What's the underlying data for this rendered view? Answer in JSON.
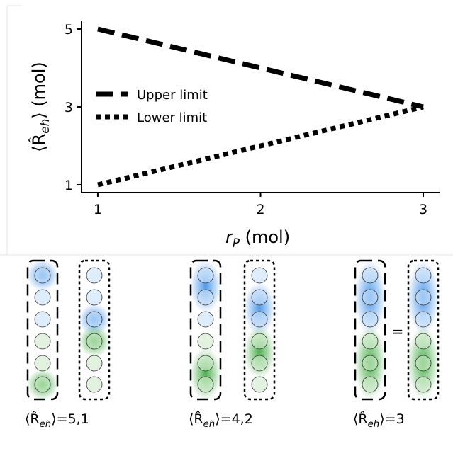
{
  "chart_data": {
    "type": "line",
    "x": [
      1,
      3
    ],
    "series": [
      {
        "name": "Upper limit",
        "color": "#000000",
        "style": "dashed",
        "values": [
          5,
          3
        ]
      },
      {
        "name": "Lower limit",
        "color": "#000000",
        "style": "dotted",
        "values": [
          1,
          3
        ]
      }
    ],
    "xlabel": {
      "text": "r",
      "sub": "P",
      "tail": " (mol)"
    },
    "ylabel": {
      "text": "⟨R̂",
      "sub": "eh",
      "tail": "⟩ (mol)"
    },
    "xlim": [
      0.9,
      3.1
    ],
    "xticks": [
      1,
      2,
      3
    ],
    "ylim": [
      0.8,
      5.2
    ],
    "yticks": [
      1,
      3,
      5
    ],
    "legend": "left"
  },
  "diagram": {
    "captions": [
      {
        "text": "⟨R̂",
        "sub": "eh",
        "tail": "⟩=5,1"
      },
      {
        "text": "⟨R̂",
        "sub": "eh",
        "tail": "⟩=4,2"
      },
      {
        "text": "⟨R̂",
        "sub": "eh",
        "tail": "⟩=3"
      }
    ],
    "equals": "="
  }
}
